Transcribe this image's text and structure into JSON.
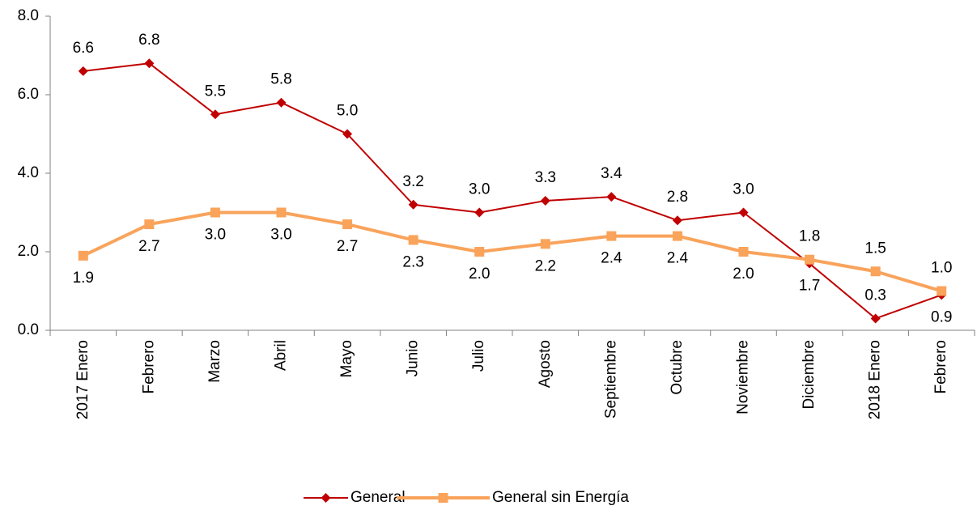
{
  "chart_data": {
    "type": "line",
    "categories": [
      "2017 Enero",
      "Febrero",
      "Marzo",
      "Abril",
      "Mayo",
      "Junio",
      "Julio",
      "Agosto",
      "Septiembre",
      "Octubre",
      "Noviembre",
      "Diciembre",
      "2018 Enero",
      "Febrero"
    ],
    "series": [
      {
        "name": "General",
        "color": "#c00000",
        "marker": "diamond",
        "values": [
          6.6,
          6.8,
          5.5,
          5.8,
          5.0,
          3.2,
          3.0,
          3.3,
          3.4,
          2.8,
          3.0,
          1.7,
          0.3,
          0.9
        ],
        "value_labels": [
          "6.6",
          "6.8",
          "5.5",
          "5.8",
          "5.0",
          "3.2",
          "3.0",
          "3.3",
          "3.4",
          "2.8",
          "3.0",
          "1.7",
          "0.3",
          "0.9"
        ]
      },
      {
        "name": "General sin Energía",
        "color": "#f9a35b",
        "marker": "square",
        "values": [
          1.9,
          2.7,
          3.0,
          3.0,
          2.7,
          2.3,
          2.0,
          2.2,
          2.4,
          2.4,
          2.0,
          1.8,
          1.5,
          1.0
        ],
        "value_labels": [
          "1.9",
          "2.7",
          "3.0",
          "3.0",
          "2.7",
          "2.3",
          "2.0",
          "2.2",
          "2.4",
          "2.4",
          "2.0",
          "1.8",
          "1.5",
          "1.0"
        ]
      }
    ],
    "ylim": [
      0,
      8
    ],
    "yticks": [
      {
        "value": 0,
        "label": "0.0"
      },
      {
        "value": 2,
        "label": "2.0"
      },
      {
        "value": 4,
        "label": "4.0"
      },
      {
        "value": 6,
        "label": "6.0"
      },
      {
        "value": 8,
        "label": "8.0"
      }
    ],
    "legend": "bottom"
  }
}
